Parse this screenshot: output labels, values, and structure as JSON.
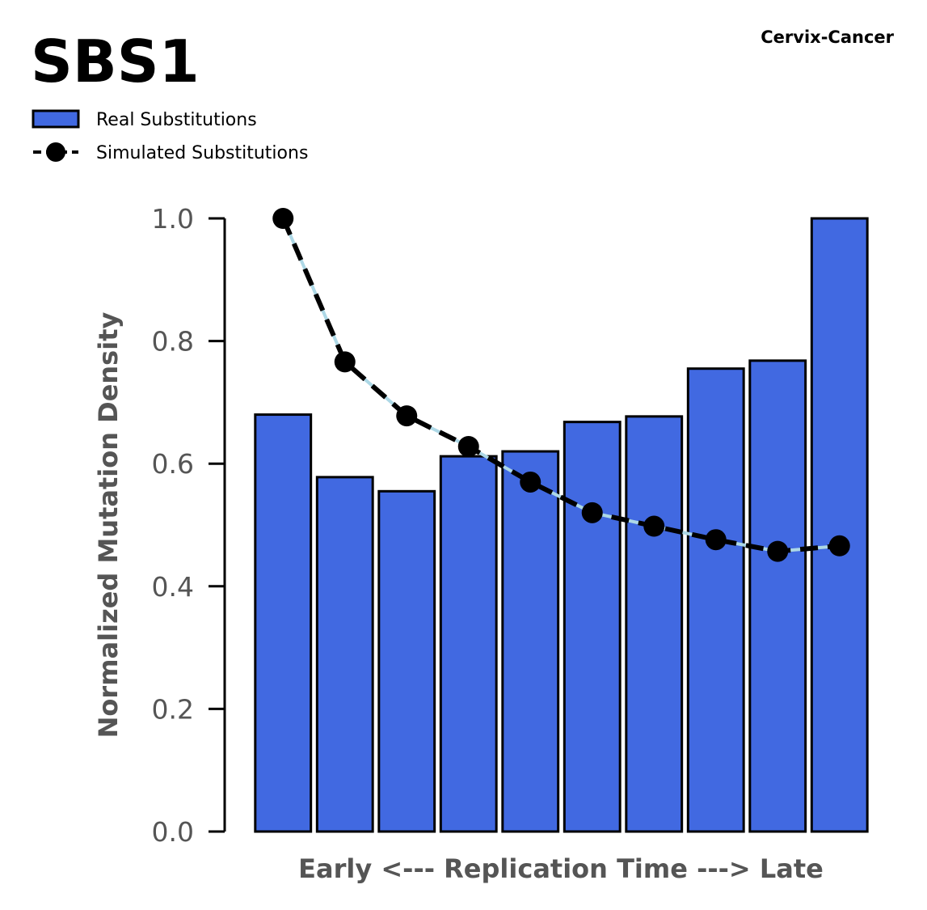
{
  "chart_data": {
    "type": "bar",
    "title": "SBS1",
    "subtitle": "Cervix-Cancer",
    "xlabel": "Early <--- Replication Time ---> Late",
    "ylabel": "Normalized Mutation Density",
    "ylim": [
      0,
      1.0
    ],
    "yticks": [
      "0.0",
      "0.2",
      "0.4",
      "0.6",
      "0.8",
      "1.0"
    ],
    "ytick_values": [
      0,
      0.2,
      0.4,
      0.6,
      0.8,
      1.0
    ],
    "legend_position": "top-left",
    "bar_color": "#4169e1",
    "line_color": "#000000",
    "line_underlay_color": "#add8e6",
    "series": [
      {
        "name": "Real Substitutions",
        "kind": "bar",
        "values": [
          0.68,
          0.578,
          0.555,
          0.612,
          0.62,
          0.668,
          0.677,
          0.755,
          0.768,
          1.0
        ]
      },
      {
        "name": "Simulated Substitutions",
        "kind": "line",
        "values": [
          1.0,
          0.766,
          0.678,
          0.628,
          0.57,
          0.52,
          0.498,
          0.476,
          0.457,
          0.466
        ]
      }
    ]
  }
}
